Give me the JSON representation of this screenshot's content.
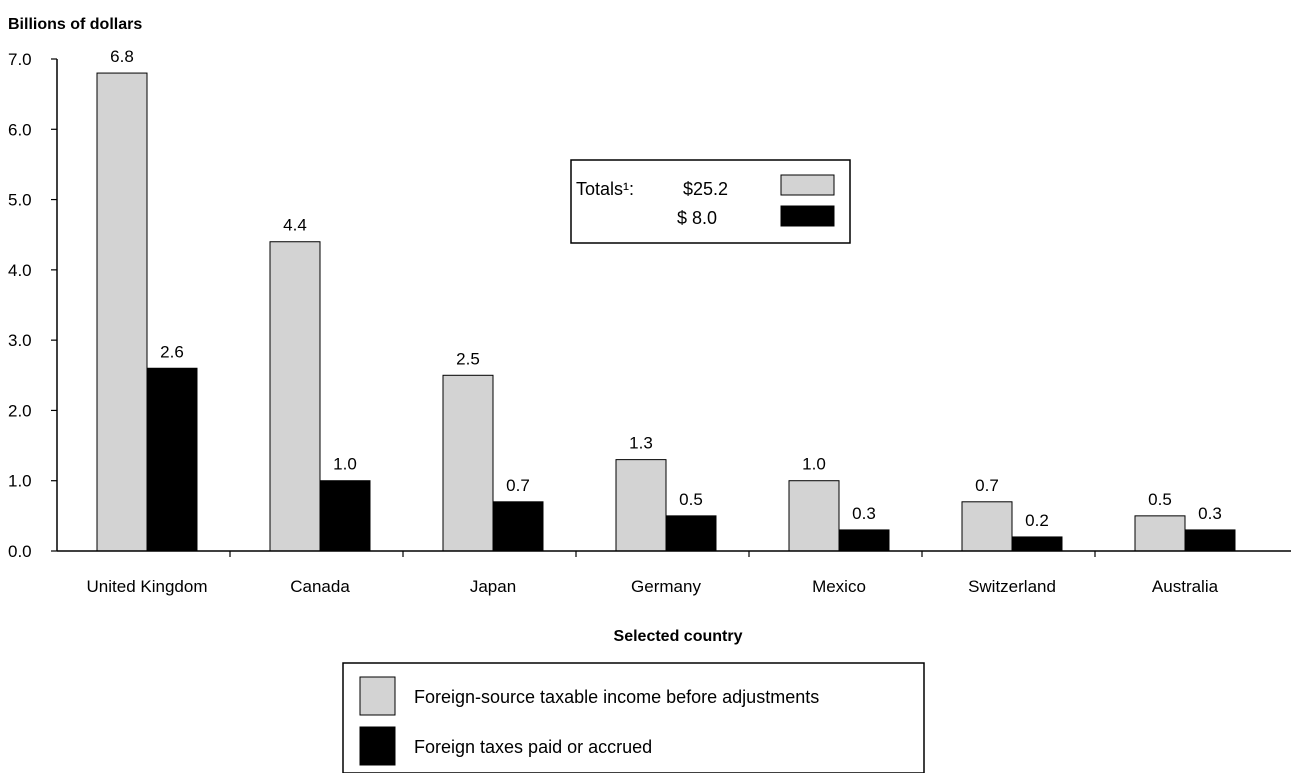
{
  "chart_data": {
    "type": "bar",
    "title": "",
    "ylabel": "Billions of dollars",
    "xlabel": "Selected country",
    "ylim": [
      0,
      7
    ],
    "yticks": [
      "0.0",
      "1.0",
      "2.0",
      "3.0",
      "4.0",
      "5.0",
      "6.0",
      "7.0"
    ],
    "categories": [
      "United Kingdom",
      "Canada",
      "Japan",
      "Germany",
      "Mexico",
      "Switzerland",
      "Australia"
    ],
    "series": [
      {
        "name": "Foreign-source taxable income before adjustments",
        "color": "#d3d3d3",
        "values": [
          6.8,
          4.4,
          2.5,
          1.3,
          1.0,
          0.7,
          0.5
        ],
        "labels": [
          "6.8",
          "4.4",
          "2.5",
          "1.3",
          "1.0",
          "0.7",
          "0.5"
        ]
      },
      {
        "name": "Foreign taxes paid or accrued",
        "color": "#000000",
        "values": [
          2.6,
          1.0,
          0.7,
          0.5,
          0.3,
          0.2,
          0.3
        ],
        "labels": [
          "2.6",
          "1.0",
          "0.7",
          "0.5",
          "0.3",
          "0.2",
          "0.3"
        ]
      }
    ],
    "totals": {
      "label": "Totals¹:",
      "values": [
        "$25.2",
        "$ 8.0"
      ]
    },
    "grid": false,
    "legend_position": "bottom-center"
  }
}
